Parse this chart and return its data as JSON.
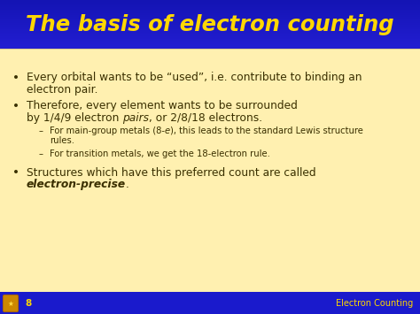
{
  "title": "The basis of electron counting",
  "title_color": "#FFD700",
  "body_bg": "#FFF0B0",
  "footer_bg": "#1A1ACC",
  "header_bg": "#2020CC",
  "footer_text": "Electron Counting",
  "footer_page": "8",
  "footer_color": "#FFD700",
  "text_color": "#3A3000",
  "figw": 4.74,
  "figh": 3.55,
  "dpi": 100
}
